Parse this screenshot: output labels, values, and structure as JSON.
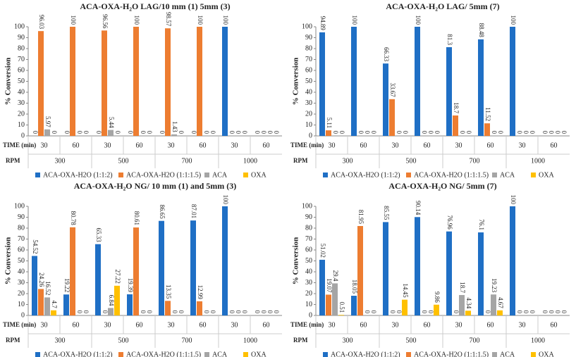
{
  "chart_data": [
    {
      "type": "bar",
      "title": "ACA-OXA-H₂O LAG/10 mm (1) 5mm (3)",
      "y_label": "% Conversion",
      "time_label": "TIME (min)",
      "rpm_label": "RPM",
      "categories": [
        "30",
        "60",
        "30",
        "60",
        "30",
        "60",
        "30",
        "60"
      ],
      "rpm": [
        "300",
        "500",
        "700",
        "1000"
      ],
      "ylim": [
        0,
        100
      ],
      "yticks": [
        0,
        10,
        20,
        30,
        40,
        50,
        60,
        70,
        80,
        90,
        100
      ],
      "series": [
        {
          "name": "ACA-OXA-H2O (1:1:2)",
          "color": "#1f6fc5",
          "values": [
            0,
            0,
            0,
            0,
            0,
            0,
            100,
            0
          ]
        },
        {
          "name": "ACA-OXA-H2O (1:1:1.5)",
          "color": "#ed7d31",
          "values": [
            96.03,
            100,
            96.56,
            100,
            98.57,
            100,
            0,
            0
          ]
        },
        {
          "name": "ACA",
          "color": "#a5a5a5",
          "values": [
            5.97,
            0,
            5.44,
            0,
            1.43,
            0,
            0,
            0
          ]
        },
        {
          "name": "OXA",
          "color": "#ffc000",
          "values": [
            0,
            0,
            0,
            0,
            0,
            0,
            0,
            0
          ]
        }
      ]
    },
    {
      "type": "bar",
      "title": "ACA-OXA-H₂O LAG/ 5mm (7)",
      "y_label": "% Conversion",
      "time_label": "TIME (min)",
      "rpm_label": "RPM",
      "categories": [
        "30",
        "60",
        "30",
        "60",
        "30",
        "60",
        "30",
        "60"
      ],
      "rpm": [
        "300",
        "500",
        "700",
        "1000"
      ],
      "ylim": [
        0,
        100
      ],
      "yticks": [
        0,
        10,
        20,
        30,
        40,
        50,
        60,
        70,
        80,
        90,
        100
      ],
      "series": [
        {
          "name": "ACA-OXA-H2O (1:1:2)",
          "color": "#1f6fc5",
          "values": [
            94.89,
            100,
            66.33,
            100,
            81.3,
            88.48,
            100,
            0
          ]
        },
        {
          "name": "ACA-OXA-H2O (1:1:1.5)",
          "color": "#ed7d31",
          "values": [
            5.11,
            0,
            33.67,
            0,
            18.7,
            11.52,
            0,
            0
          ]
        },
        {
          "name": "ACA",
          "color": "#a5a5a5",
          "values": [
            0,
            0,
            0,
            0,
            0,
            0,
            0,
            0
          ]
        },
        {
          "name": "OXA",
          "color": "#ffc000",
          "values": [
            0,
            0,
            0,
            0,
            0,
            0,
            0,
            0
          ]
        }
      ]
    },
    {
      "type": "bar",
      "title": "ACA-OXA-H₂O NG/ 10 mm (1) and 5mm (3)",
      "y_label": "% Conversion",
      "time_label": "TIME (min)",
      "rpm_label": "RPM",
      "categories": [
        "30",
        "60",
        "30",
        "60",
        "30",
        "60",
        "30",
        "60"
      ],
      "rpm": [
        "300",
        "500",
        "700",
        "1000"
      ],
      "ylim": [
        0,
        100
      ],
      "yticks": [
        0,
        10,
        20,
        30,
        40,
        50,
        60,
        70,
        80,
        90,
        100
      ],
      "series": [
        {
          "name": "ACA-OXA-H2O (1:1:2)",
          "color": "#1f6fc5",
          "values": [
            54.52,
            19.22,
            65.33,
            19.39,
            86.65,
            87.01,
            100,
            0
          ]
        },
        {
          "name": "ACA-OXA-H2O (1:1:1.5)",
          "color": "#ed7d31",
          "values": [
            24.26,
            80.78,
            0,
            80.61,
            13.35,
            12.99,
            0,
            0
          ]
        },
        {
          "name": "ACA",
          "color": "#a5a5a5",
          "values": [
            16.52,
            0,
            6.84,
            0,
            0,
            0,
            0,
            0
          ]
        },
        {
          "name": "OXA",
          "color": "#ffc000",
          "values": [
            4.7,
            0,
            27.22,
            0,
            0,
            0,
            0,
            0
          ]
        }
      ]
    },
    {
      "type": "bar",
      "title": "ACA-OXA-H₂O NG/ 5mm (7)",
      "y_label": "% Conversion",
      "time_label": "TIME (min)",
      "rpm_label": "RPM",
      "categories": [
        "30",
        "60",
        "30",
        "60",
        "30",
        "60",
        "30",
        "60"
      ],
      "rpm": [
        "300",
        "500",
        "700",
        "1000"
      ],
      "ylim": [
        0,
        100
      ],
      "yticks": [
        0,
        10,
        20,
        30,
        40,
        50,
        60,
        70,
        80,
        90,
        100
      ],
      "series": [
        {
          "name": "ACA-OXA-H2O (1:1:2)",
          "color": "#1f6fc5",
          "values": [
            51.02,
            18.05,
            85.55,
            90.14,
            76.96,
            76.1,
            100,
            0
          ]
        },
        {
          "name": "ACA-OXA-H2O (1:1:1.5)",
          "color": "#ed7d31",
          "values": [
            19.07,
            81.95,
            0,
            0,
            0,
            0,
            0,
            0
          ]
        },
        {
          "name": "ACA",
          "color": "#a5a5a5",
          "values": [
            29.4,
            0,
            0,
            0,
            18.7,
            19.23,
            0,
            0
          ]
        },
        {
          "name": "OXA",
          "color": "#ffc000",
          "values": [
            0.51,
            0,
            14.45,
            9.86,
            4.34,
            4.67,
            0,
            0
          ]
        }
      ]
    }
  ]
}
